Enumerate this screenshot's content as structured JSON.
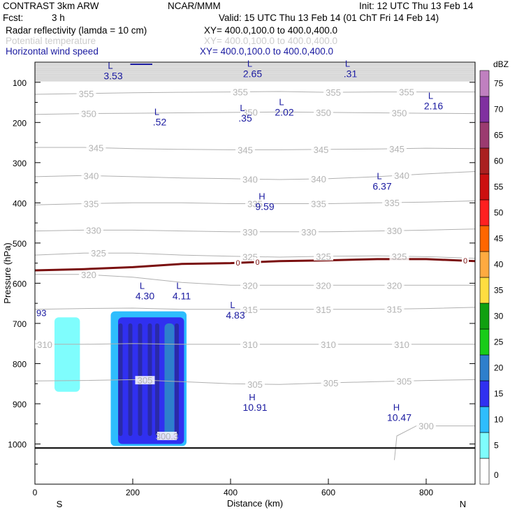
{
  "header": {
    "left_title": "CONTRAST  3km ARW",
    "center_title": "NCAR/MMM",
    "init": "Init: 12 UTC Thu 13 Feb 14",
    "fcst_label": "Fcst:",
    "fcst_value": "3 h",
    "valid": "Valid: 15 UTC Thu 13 Feb 14 (01 ChT Fri 14 Feb 14)",
    "fields": [
      {
        "name": "Radar reflectivity (lamda = 10 cm)",
        "xy": "XY= 400.0,100.0 to 400.0,400.0",
        "color": "#000000"
      },
      {
        "name": "Potential temperature",
        "xy": "XY= 400.0,100.0 to 400.0,400.0",
        "color": "#cccccc"
      },
      {
        "name": "Horizontal wind speed",
        "xy": "XY= 400.0,100.0 to 400.0,400.0",
        "color": "#1a1aa0"
      }
    ]
  },
  "chart_data": {
    "type": "cross-section",
    "xlabel": "Distance (km)",
    "ylabel": "Pressure (hPa)",
    "xlim": [
      0,
      900
    ],
    "ylim": [
      1100,
      50
    ],
    "x_ticks": [
      0,
      200,
      400,
      600,
      800
    ],
    "y_ticks": [
      100,
      200,
      300,
      400,
      500,
      600,
      700,
      800,
      900,
      1000
    ],
    "end_labels": {
      "left": "S",
      "right": "N"
    },
    "theta_isentropes": [
      {
        "value": "355",
        "points": [
          [
            0,
            130
          ],
          [
            100,
            128
          ],
          [
            200,
            126
          ],
          [
            300,
            125
          ],
          [
            400,
            124
          ],
          [
            500,
            123
          ],
          [
            600,
            125
          ],
          [
            700,
            124
          ],
          [
            800,
            124
          ],
          [
            900,
            124
          ]
        ],
        "labels": [
          [
            105,
            "355"
          ],
          [
            420,
            "355"
          ],
          [
            610,
            "355"
          ],
          [
            760,
            "355"
          ]
        ]
      },
      {
        "value": "350",
        "points": [
          [
            0,
            180
          ],
          [
            100,
            178
          ],
          [
            200,
            177
          ],
          [
            300,
            176
          ],
          [
            400,
            175
          ],
          [
            500,
            174
          ],
          [
            600,
            175
          ],
          [
            700,
            176
          ],
          [
            800,
            177
          ],
          [
            900,
            178
          ]
        ],
        "labels": [
          [
            110,
            "350"
          ],
          [
            440,
            "350"
          ],
          [
            590,
            "350"
          ],
          [
            745,
            "350"
          ]
        ]
      },
      {
        "value": "345",
        "points": [
          [
            0,
            262
          ],
          [
            100,
            262
          ],
          [
            200,
            265
          ],
          [
            300,
            267
          ],
          [
            400,
            268
          ],
          [
            500,
            268
          ],
          [
            600,
            267
          ],
          [
            700,
            266
          ],
          [
            800,
            264
          ],
          [
            900,
            265
          ]
        ],
        "labels": [
          [
            125,
            "345"
          ],
          [
            430,
            "345"
          ],
          [
            585,
            "345"
          ],
          [
            740,
            "345"
          ]
        ]
      },
      {
        "value": "340",
        "points": [
          [
            0,
            335
          ],
          [
            100,
            332
          ],
          [
            200,
            335
          ],
          [
            300,
            338
          ],
          [
            400,
            340
          ],
          [
            500,
            342
          ],
          [
            600,
            340
          ],
          [
            700,
            335
          ],
          [
            800,
            328
          ],
          [
            900,
            322
          ]
        ],
        "labels": [
          [
            115,
            "340"
          ],
          [
            440,
            "340"
          ],
          [
            580,
            "340"
          ],
          [
            750,
            "340"
          ]
        ]
      },
      {
        "value": "335",
        "points": [
          [
            0,
            405
          ],
          [
            100,
            402
          ],
          [
            200,
            400
          ],
          [
            300,
            400
          ],
          [
            400,
            402
          ],
          [
            500,
            402
          ],
          [
            600,
            402
          ],
          [
            700,
            400
          ],
          [
            800,
            398
          ],
          [
            900,
            395
          ]
        ],
        "labels": [
          [
            115,
            "335"
          ],
          [
            450,
            "335"
          ],
          [
            580,
            "335"
          ],
          [
            730,
            "335"
          ]
        ]
      },
      {
        "value": "330",
        "points": [
          [
            0,
            470
          ],
          [
            100,
            468
          ],
          [
            200,
            468
          ],
          [
            300,
            470
          ],
          [
            400,
            472
          ],
          [
            500,
            472
          ],
          [
            600,
            472
          ],
          [
            700,
            470
          ],
          [
            800,
            468
          ],
          [
            900,
            465
          ]
        ],
        "labels": [
          [
            120,
            "330"
          ],
          [
            440,
            "330"
          ],
          [
            560,
            "330"
          ],
          [
            735,
            "330"
          ]
        ]
      },
      {
        "value": "325",
        "points": [
          [
            0,
            530
          ],
          [
            100,
            525
          ],
          [
            200,
            525
          ],
          [
            300,
            530
          ],
          [
            400,
            533
          ],
          [
            500,
            535
          ],
          [
            600,
            533
          ],
          [
            700,
            532
          ],
          [
            800,
            534
          ],
          [
            900,
            538
          ]
        ],
        "labels": [
          [
            130,
            "325"
          ],
          [
            440,
            "325"
          ],
          [
            590,
            "325"
          ],
          [
            745,
            "325"
          ]
        ]
      },
      {
        "value": "320",
        "points": [
          [
            0,
            578
          ],
          [
            100,
            578
          ],
          [
            200,
            585
          ],
          [
            300,
            598
          ],
          [
            400,
            605
          ],
          [
            500,
            605
          ],
          [
            600,
            605
          ],
          [
            700,
            605
          ],
          [
            800,
            605
          ],
          [
            900,
            605
          ]
        ],
        "labels": [
          [
            110,
            "320"
          ],
          [
            440,
            "320"
          ],
          [
            590,
            "320"
          ],
          [
            735,
            "320"
          ]
        ]
      },
      {
        "value": "315",
        "points": [
          [
            0,
            665
          ],
          [
            100,
            663
          ],
          [
            200,
            662
          ],
          [
            300,
            665
          ],
          [
            400,
            665
          ],
          [
            500,
            665
          ],
          [
            600,
            665
          ],
          [
            700,
            665
          ],
          [
            800,
            663
          ],
          [
            900,
            660
          ]
        ],
        "labels": [
          [
            440,
            "315"
          ],
          [
            590,
            "315"
          ],
          [
            735,
            "315"
          ]
        ]
      },
      {
        "value": "310",
        "points": [
          [
            0,
            752
          ],
          [
            100,
            752
          ],
          [
            200,
            750
          ],
          [
            300,
            752
          ],
          [
            400,
            752
          ],
          [
            500,
            752
          ],
          [
            600,
            752
          ],
          [
            700,
            752
          ],
          [
            800,
            752
          ],
          [
            900,
            752
          ]
        ],
        "labels": [
          [
            20,
            "310"
          ],
          [
            440,
            "310"
          ],
          [
            600,
            "310"
          ],
          [
            750,
            "310"
          ]
        ]
      },
      {
        "value": "305",
        "points": [
          [
            0,
            843
          ],
          [
            100,
            842
          ],
          [
            200,
            840
          ],
          [
            300,
            845
          ],
          [
            400,
            850
          ],
          [
            500,
            852
          ],
          [
            600,
            848
          ],
          [
            700,
            845
          ],
          [
            800,
            842
          ],
          [
            900,
            840
          ]
        ],
        "labels": [
          [
            225,
            "305"
          ],
          [
            450,
            "305"
          ],
          [
            605,
            "305"
          ],
          [
            755,
            "305"
          ]
        ]
      },
      {
        "value": "300",
        "points": [
          [
            735,
            1040
          ],
          [
            740,
            980
          ],
          [
            780,
            955
          ],
          [
            860,
            955
          ],
          [
            900,
            955
          ]
        ],
        "labels": [
          [
            800,
            "300"
          ]
        ]
      },
      {
        "value": "300.3",
        "points": [],
        "labels": [
          [
            270,
            "300.3"
          ]
        ]
      }
    ],
    "freezing_level": {
      "label": "0",
      "points": [
        [
          0,
          568
        ],
        [
          100,
          565
        ],
        [
          200,
          560
        ],
        [
          300,
          552
        ],
        [
          400,
          550
        ],
        [
          500,
          545
        ],
        [
          600,
          543
        ],
        [
          700,
          540
        ],
        [
          800,
          540
        ],
        [
          900,
          545
        ]
      ],
      "labels": [
        [
          415,
          "0"
        ],
        [
          455,
          "0"
        ],
        [
          880,
          "0"
        ]
      ]
    },
    "wind_extrema": [
      {
        "type": "L",
        "value": "3.53",
        "x": 160,
        "p": 70
      },
      {
        "type": "L",
        "value": "2.65",
        "x": 445,
        "p": 65
      },
      {
        "type": "L",
        "value": ".31",
        "x": 645,
        "p": 65
      },
      {
        "type": "L",
        "value": ".52",
        "x": 255,
        "p": 185
      },
      {
        "type": "L",
        "value": ".35",
        "x": 430,
        "p": 175
      },
      {
        "type": "L",
        "value": "2.02",
        "x": 510,
        "p": 160
      },
      {
        "type": "L",
        "value": "2.16",
        "x": 815,
        "p": 145
      },
      {
        "type": "L",
        "value": "6.37",
        "x": 710,
        "p": 345
      },
      {
        "type": "H",
        "value": "9.59",
        "x": 470,
        "p": 395
      },
      {
        "type": "L",
        "value": "4.30",
        "x": 225,
        "p": 618
      },
      {
        "type": "L",
        "value": "4.11",
        "x": 300,
        "p": 618
      },
      {
        "type": "L",
        "value": "4.83",
        "x": 410,
        "p": 665
      },
      {
        "type": "H",
        "value": "10.91",
        "x": 450,
        "p": 895
      },
      {
        "type": "H",
        "value": "10.47",
        "x": 745,
        "p": 920
      }
    ],
    "edge_value_label": "93",
    "reflectivity_legend": {
      "unit": "dBZ",
      "levels": [
        0,
        5,
        10,
        15,
        20,
        25,
        30,
        35,
        40,
        45,
        50,
        55,
        60,
        65,
        70,
        75
      ],
      "colors": [
        "#ffffff",
        "#7ffdfd",
        "#2ebdfd",
        "#3030f0",
        "#2e7fcc",
        "#18cc18",
        "#10a010",
        "#ffdd40",
        "#ffaa40",
        "#ff6600",
        "#ff2020",
        "#cc1010",
        "#aa2020",
        "#9b3b70",
        "#8030a0",
        "#c080c0"
      ]
    },
    "reflectivity_cells": [
      {
        "dbz": 5,
        "x0": 40,
        "x1": 92,
        "p_top": 685,
        "p_bot": 870
      },
      {
        "dbz": 10,
        "x0": 155,
        "x1": 310,
        "p_top": 670,
        "p_bot": 1005
      },
      {
        "dbz": 15,
        "x0": 170,
        "x1": 305,
        "p_top": 685,
        "p_bot": 1000
      },
      {
        "dbz": 20,
        "x0": 265,
        "x1": 285,
        "p_top": 700,
        "p_bot": 980
      }
    ],
    "terrain_p": 1010
  }
}
